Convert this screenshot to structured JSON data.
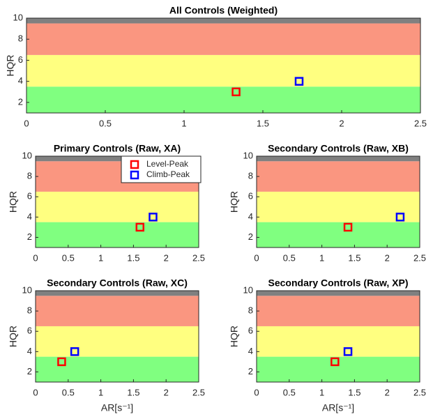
{
  "chart_data": [
    {
      "type": "scatter",
      "title": "All Controls (Weighted)",
      "ylabel": "HQR",
      "xlim": [
        0,
        2.5
      ],
      "ylim": [
        1,
        10
      ],
      "xticks": [
        0,
        0.5,
        1,
        1.5,
        2,
        2.5
      ],
      "yticks": [
        2,
        4,
        6,
        8,
        10
      ],
      "bands": [
        {
          "from": 1,
          "to": 3.5,
          "color": "#80ff80"
        },
        {
          "from": 3.5,
          "to": 6.5,
          "color": "#ffff80"
        },
        {
          "from": 6.5,
          "to": 9.5,
          "color": "#fa9680"
        },
        {
          "from": 9.5,
          "to": 10,
          "color": "#808080"
        }
      ],
      "series": [
        {
          "color": "#ff0000",
          "x": [
            1.33
          ],
          "values": [
            3
          ]
        },
        {
          "color": "#0000ff",
          "x": [
            1.73
          ],
          "values": [
            4
          ]
        }
      ]
    },
    {
      "type": "scatter",
      "title": "Primary Controls (Raw, XA)",
      "ylabel": "HQR",
      "legend": "northeast",
      "xlim": [
        0,
        2.5
      ],
      "ylim": [
        1,
        10
      ],
      "xticks": [
        0,
        0.5,
        1,
        1.5,
        2,
        2.5
      ],
      "yticks": [
        2,
        4,
        6,
        8,
        10
      ],
      "bands": [
        {
          "from": 1,
          "to": 3.5,
          "color": "#80ff80"
        },
        {
          "from": 3.5,
          "to": 6.5,
          "color": "#ffff80"
        },
        {
          "from": 6.5,
          "to": 9.5,
          "color": "#fa9680"
        },
        {
          "from": 9.5,
          "to": 10,
          "color": "#808080"
        }
      ],
      "series": [
        {
          "name": "Level-Peak",
          "color": "#ff0000",
          "x": [
            1.6
          ],
          "values": [
            3
          ]
        },
        {
          "name": "Climb-Peak",
          "color": "#0000ff",
          "x": [
            1.8
          ],
          "values": [
            4
          ]
        }
      ]
    },
    {
      "type": "scatter",
      "title": "Secondary Controls  (Raw, XB)",
      "ylabel": "HQR",
      "xlim": [
        0,
        2.5
      ],
      "ylim": [
        1,
        10
      ],
      "xticks": [
        0,
        0.5,
        1,
        1.5,
        2,
        2.5
      ],
      "yticks": [
        2,
        4,
        6,
        8,
        10
      ],
      "bands": [
        {
          "from": 1,
          "to": 3.5,
          "color": "#80ff80"
        },
        {
          "from": 3.5,
          "to": 6.5,
          "color": "#ffff80"
        },
        {
          "from": 6.5,
          "to": 9.5,
          "color": "#fa9680"
        },
        {
          "from": 9.5,
          "to": 10,
          "color": "#808080"
        }
      ],
      "series": [
        {
          "color": "#ff0000",
          "x": [
            1.4
          ],
          "values": [
            3
          ]
        },
        {
          "color": "#0000ff",
          "x": [
            2.2
          ],
          "values": [
            4
          ]
        }
      ]
    },
    {
      "type": "scatter",
      "title": "Secondary Controls (Raw, XC)",
      "ylabel": "HQR",
      "xlabel": "AR[s⁻¹]",
      "xlim": [
        0,
        2.5
      ],
      "ylim": [
        1,
        10
      ],
      "xticks": [
        0,
        0.5,
        1,
        1.5,
        2,
        2.5
      ],
      "yticks": [
        2,
        4,
        6,
        8,
        10
      ],
      "bands": [
        {
          "from": 1,
          "to": 3.5,
          "color": "#80ff80"
        },
        {
          "from": 3.5,
          "to": 6.5,
          "color": "#ffff80"
        },
        {
          "from": 6.5,
          "to": 9.5,
          "color": "#fa9680"
        },
        {
          "from": 9.5,
          "to": 10,
          "color": "#808080"
        }
      ],
      "series": [
        {
          "color": "#ff0000",
          "x": [
            0.4
          ],
          "values": [
            3
          ]
        },
        {
          "color": "#0000ff",
          "x": [
            0.6
          ],
          "values": [
            4
          ]
        }
      ]
    },
    {
      "type": "scatter",
      "title": "Secondary Controls (Raw, XP)",
      "ylabel": "HQR",
      "xlabel": "AR[s⁻¹]",
      "xlim": [
        0,
        2.5
      ],
      "ylim": [
        1,
        10
      ],
      "xticks": [
        0,
        0.5,
        1,
        1.5,
        2,
        2.5
      ],
      "yticks": [
        2,
        4,
        6,
        8,
        10
      ],
      "bands": [
        {
          "from": 1,
          "to": 3.5,
          "color": "#80ff80"
        },
        {
          "from": 3.5,
          "to": 6.5,
          "color": "#ffff80"
        },
        {
          "from": 6.5,
          "to": 9.5,
          "color": "#fa9680"
        },
        {
          "from": 9.5,
          "to": 10,
          "color": "#808080"
        }
      ],
      "series": [
        {
          "color": "#ff0000",
          "x": [
            1.2
          ],
          "values": [
            3
          ]
        },
        {
          "color": "#0000ff",
          "x": [
            1.4
          ],
          "values": [
            4
          ]
        }
      ]
    }
  ]
}
